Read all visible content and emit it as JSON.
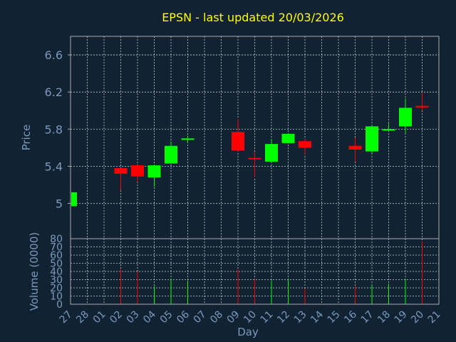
{
  "chart_data": {
    "type": "candlestick",
    "title": "EPSN - last updated 20/03/2026",
    "xlabel": "Day",
    "price_panel": {
      "ylabel": "Price",
      "ylim": [
        4.62,
        6.8
      ],
      "yticks": [
        5,
        5.4,
        5.8,
        6.2,
        6.6
      ],
      "ytick_labels": [
        "5",
        "5.4",
        "5.8",
        "6.2",
        "6.6"
      ]
    },
    "volume_panel": {
      "ylabel": "Volume (0000)",
      "ylim": [
        0,
        80
      ],
      "yticks": [
        0,
        10,
        20,
        30,
        40,
        50,
        60,
        70,
        80
      ],
      "ytick_labels": [
        "0",
        "10",
        "20",
        "30",
        "40",
        "50",
        "60",
        "70",
        "80"
      ]
    },
    "x_tick_labels": [
      "27",
      "28",
      "01",
      "02",
      "03",
      "04",
      "05",
      "06",
      "07",
      "08",
      "09",
      "10",
      "11",
      "12",
      "13",
      "14",
      "15",
      "16",
      "17",
      "18",
      "19",
      "20",
      "21"
    ],
    "grid": true,
    "colors": {
      "background": "#112233",
      "axes": "#aaaaaa",
      "grid": "#cccccc",
      "title": "#ffff00",
      "label": "#7a99bb",
      "tick": "#7a99bb",
      "up": "#00ff00",
      "down": "#ff0000"
    },
    "candles": [
      {
        "day": "27",
        "open": 4.97,
        "high": 5.12,
        "low": 4.97,
        "close": 5.12,
        "volume": null
      },
      {
        "day": "02",
        "open": 5.38,
        "high": 5.38,
        "low": 5.14,
        "close": 5.32,
        "volume": 43
      },
      {
        "day": "03",
        "open": 5.41,
        "high": 5.41,
        "low": 5.23,
        "close": 5.29,
        "volume": 40
      },
      {
        "day": "04",
        "open": 5.28,
        "high": 5.41,
        "low": 5.18,
        "close": 5.41,
        "volume": 22
      },
      {
        "day": "05",
        "open": 5.43,
        "high": 5.67,
        "low": 5.43,
        "close": 5.62,
        "volume": 31
      },
      {
        "day": "06",
        "open": 5.69,
        "high": 5.73,
        "low": 5.65,
        "close": 5.7,
        "volume": 29
      },
      {
        "day": "09",
        "open": 5.77,
        "high": 5.91,
        "low": 5.56,
        "close": 5.57,
        "volume": 43
      },
      {
        "day": "10",
        "open": 5.49,
        "high": 5.55,
        "low": 5.28,
        "close": 5.48,
        "volume": 31
      },
      {
        "day": "11",
        "open": 5.45,
        "high": 5.69,
        "low": 5.45,
        "close": 5.64,
        "volume": 29
      },
      {
        "day": "12",
        "open": 5.65,
        "high": 5.75,
        "low": 5.65,
        "close": 5.75,
        "volume": 30
      },
      {
        "day": "13",
        "open": 5.67,
        "high": 5.69,
        "low": 5.53,
        "close": 5.6,
        "volume": 19
      },
      {
        "day": "16",
        "open": 5.62,
        "high": 5.71,
        "low": 5.45,
        "close": 5.58,
        "volume": 22
      },
      {
        "day": "17",
        "open": 5.56,
        "high": 5.84,
        "low": 5.53,
        "close": 5.83,
        "volume": 23
      },
      {
        "day": "18",
        "open": 5.79,
        "high": 5.86,
        "low": 5.79,
        "close": 5.8,
        "volume": 25
      },
      {
        "day": "19",
        "open": 5.83,
        "high": 6.13,
        "low": 5.76,
        "close": 6.03,
        "volume": 30
      },
      {
        "day": "20",
        "open": 6.05,
        "high": 6.19,
        "low": 6.0,
        "close": 6.04,
        "volume": 77
      }
    ]
  }
}
